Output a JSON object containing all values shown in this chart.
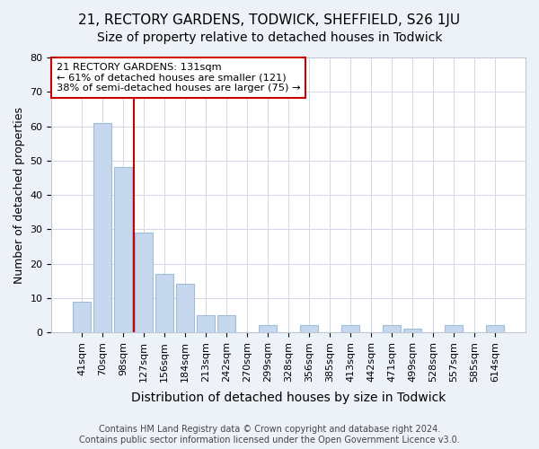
{
  "title": "21, RECTORY GARDENS, TODWICK, SHEFFIELD, S26 1JU",
  "subtitle": "Size of property relative to detached houses in Todwick",
  "xlabel": "Distribution of detached houses by size in Todwick",
  "ylabel": "Number of detached properties",
  "categories": [
    "41sqm",
    "70sqm",
    "98sqm",
    "127sqm",
    "156sqm",
    "184sqm",
    "213sqm",
    "242sqm",
    "270sqm",
    "299sqm",
    "328sqm",
    "356sqm",
    "385sqm",
    "413sqm",
    "442sqm",
    "471sqm",
    "499sqm",
    "528sqm",
    "557sqm",
    "585sqm",
    "614sqm"
  ],
  "values": [
    9,
    61,
    48,
    29,
    17,
    14,
    5,
    5,
    0,
    2,
    0,
    2,
    0,
    2,
    0,
    2,
    1,
    0,
    2,
    0,
    2
  ],
  "bar_color": "#c5d8ed",
  "bar_edgecolor": "#a0bcd8",
  "vline_x": 2.5,
  "vline_color": "#cc0000",
  "ylim": [
    0,
    80
  ],
  "yticks": [
    0,
    10,
    20,
    30,
    40,
    50,
    60,
    70,
    80
  ],
  "annotation_text": "21 RECTORY GARDENS: 131sqm\n← 61% of detached houses are smaller (121)\n38% of semi-detached houses are larger (75) →",
  "annotation_box_edgecolor": "#cc0000",
  "footer": "Contains HM Land Registry data © Crown copyright and database right 2024.\nContains public sector information licensed under the Open Government Licence v3.0.",
  "bg_color": "#edf2f9",
  "plot_bg_color": "#ffffff",
  "title_fontsize": 11,
  "subtitle_fontsize": 10,
  "tick_fontsize": 8
}
